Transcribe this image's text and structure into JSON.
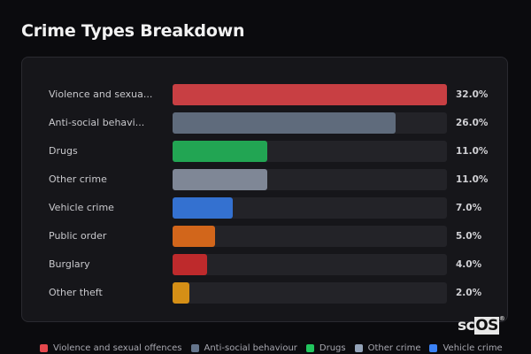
{
  "title": "Crime Types Breakdown",
  "logo": {
    "sc": "sc",
    "os": "OS",
    "mark": "®"
  },
  "chart_data": {
    "type": "bar",
    "orientation": "horizontal",
    "title": "Crime Types Breakdown",
    "categories": [
      "Violence and sexual offences",
      "Anti-social behaviour",
      "Drugs",
      "Other crime",
      "Vehicle crime",
      "Public order",
      "Burglary",
      "Other theft"
    ],
    "display_labels": [
      "Violence and sexua...",
      "Anti-social behavi...",
      "Drugs",
      "Other crime",
      "Vehicle crime",
      "Public order",
      "Burglary",
      "Other theft"
    ],
    "values": [
      32.0,
      26.0,
      11.0,
      11.0,
      7.0,
      5.0,
      4.0,
      2.0
    ],
    "value_labels": [
      "32.0%",
      "26.0%",
      "11.0%",
      "11.0%",
      "7.0%",
      "5.0%",
      "4.0%",
      "2.0%"
    ],
    "colors": [
      "#c83f43",
      "#5f6b7c",
      "#22a553",
      "#7f8796",
      "#3471d0",
      "#d2661b",
      "#be2a2c",
      "#d58f16"
    ],
    "xmax": 32.0,
    "xlabel": "",
    "ylabel": "",
    "grid": false,
    "legend_position": "bottom"
  },
  "legend": [
    {
      "label": "Violence and sexual offences",
      "color": "#e5484d"
    },
    {
      "label": "Anti-social behaviour",
      "color": "#64748b"
    },
    {
      "label": "Drugs",
      "color": "#22c55e"
    },
    {
      "label": "Other crime",
      "color": "#94a3b8"
    },
    {
      "label": "Vehicle crime",
      "color": "#3b82f6"
    }
  ]
}
